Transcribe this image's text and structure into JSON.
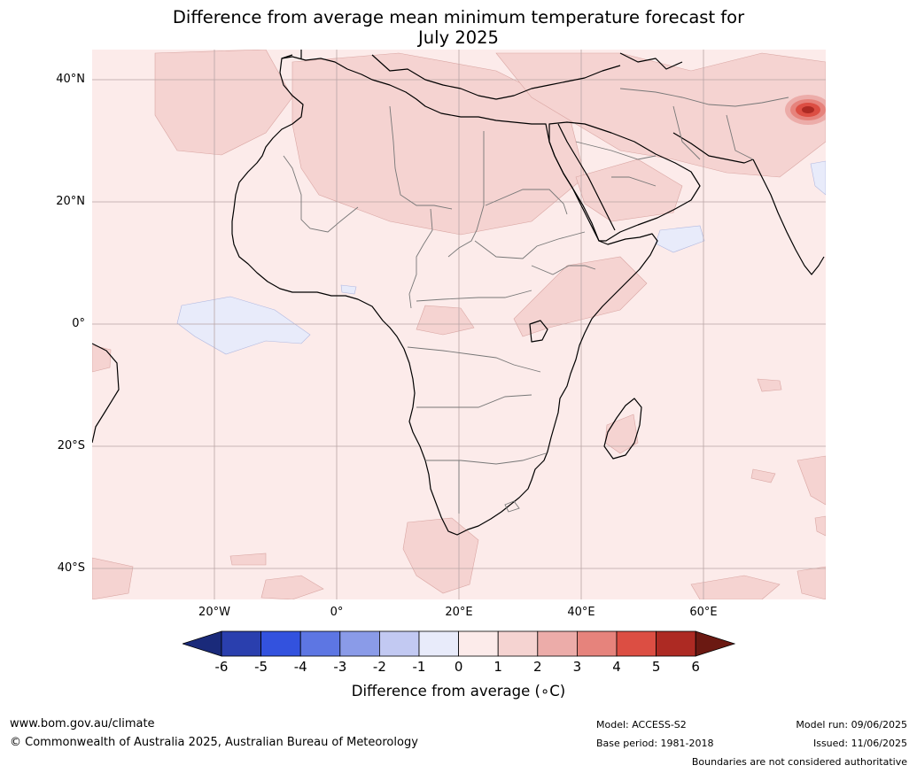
{
  "title": {
    "line1": "Difference from average mean minimum temperature forecast for",
    "line2": "July 2025"
  },
  "map": {
    "lat_labels": [
      "40°N",
      "20°N",
      "0°",
      "20°S",
      "40°S"
    ],
    "lon_labels": [
      "20°W",
      "0°",
      "20°E",
      "40°E",
      "60°E"
    ],
    "background_color": "#fcebea",
    "anomaly_regions": [
      {
        "area": "Sahara and Arabia",
        "class": "1 to 2"
      },
      {
        "area": "Himalaya / Tibet",
        "class": "2 to 6"
      },
      {
        "area": "Gulf of Guinea",
        "class": "0 to -1"
      },
      {
        "area": "Arabian Sea east of Somalia",
        "class": "0 to -1"
      }
    ]
  },
  "colorbar": {
    "ticks": [
      "-6",
      "-5",
      "-4",
      "-3",
      "-2",
      "-1",
      "0",
      "1",
      "2",
      "3",
      "4",
      "5",
      "6"
    ],
    "colors": [
      "#1a2a7a",
      "#2a3fae",
      "#3352de",
      "#5d76e3",
      "#8a9be8",
      "#c2c9f2",
      "#e8ebfa",
      "#fcebea",
      "#f5d3d1",
      "#ecaca9",
      "#e6837c",
      "#dc4e43",
      "#ad2a23",
      "#6b1912"
    ],
    "label": "Difference from average (∘C)"
  },
  "footer": {
    "website": "www.bom.gov.au/climate",
    "copyright": "© Commonwealth of Australia 2025, Australian Bureau of Meteorology",
    "model": "Model: ACCESS-S2",
    "base_period": "Base period: 1981-2018",
    "model_run": "Model run: 09/06/2025",
    "issued": "Issued: 11/06/2025",
    "disclaimer": "Boundaries are not considered authoritative"
  }
}
